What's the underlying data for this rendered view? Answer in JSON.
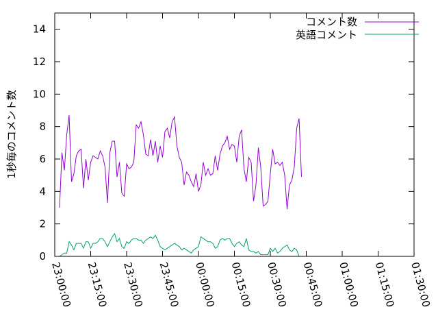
{
  "chart_data": {
    "type": "line",
    "title": "",
    "xlabel": "",
    "ylabel": "1秒毎のコメント数",
    "xlim": [
      "23:00:00",
      "01:30:00"
    ],
    "ylim": [
      0,
      15
    ],
    "x_ticks": [
      "23:00:00",
      "23:15:00",
      "23:30:00",
      "23:45:00",
      "00:00:00",
      "00:15:00",
      "00:30:00",
      "00:45:00",
      "01:00:00",
      "01:15:00",
      "01:30:00"
    ],
    "y_ticks": [
      "0",
      "2",
      "4",
      "6",
      "8",
      "10",
      "12",
      "14"
    ],
    "grid": false,
    "legend_position": "top-right",
    "x_start": "23:02:00",
    "x_step_seconds": 60,
    "series": [
      {
        "name": "コメント数",
        "color": "#9400d3",
        "values": [
          3.0,
          6.4,
          5.3,
          7.5,
          8.7,
          4.6,
          5.1,
          6.2,
          6.5,
          6.6,
          4.2,
          6.0,
          4.7,
          5.8,
          6.2,
          6.1,
          6.0,
          6.5,
          6.2,
          5.5,
          3.3,
          6.4,
          7.1,
          7.1,
          4.9,
          5.8,
          3.9,
          3.7,
          5.7,
          5.4,
          5.5,
          5.8,
          8.1,
          7.9,
          8.3,
          7.5,
          6.3,
          6.2,
          7.2,
          6.2,
          7.1,
          5.8,
          6.8,
          6.1,
          7.7,
          7.9,
          7.3,
          8.3,
          8.6,
          6.8,
          6.1,
          5.8,
          4.4,
          5.2,
          5.0,
          4.6,
          4.3,
          5.1,
          4.0,
          4.4,
          5.8,
          5.0,
          5.4,
          5.0,
          5.1,
          6.2,
          5.3,
          6.3,
          6.8,
          7.0,
          7.4,
          6.6,
          6.9,
          6.8,
          5.8,
          7.4,
          7.8,
          5.4,
          4.6,
          6.1,
          5.8,
          3.4,
          4.4,
          6.7,
          5.5,
          3.1,
          3.2,
          3.4,
          5.1,
          6.6,
          5.7,
          5.8,
          5.6,
          5.8,
          5.0,
          2.9,
          4.4,
          4.7,
          5.5,
          7.9,
          8.5,
          4.9
        ]
      },
      {
        "name": "英語コメント",
        "color": "#009e73",
        "values": [
          0.0,
          0.1,
          0.2,
          0.2,
          0.9,
          0.7,
          0.4,
          0.8,
          0.8,
          0.8,
          0.5,
          0.9,
          0.9,
          0.5,
          0.8,
          0.8,
          0.9,
          1.1,
          1.1,
          0.9,
          0.6,
          0.9,
          1.2,
          1.4,
          0.9,
          1.1,
          0.6,
          0.5,
          0.9,
          0.8,
          1.0,
          1.1,
          1.1,
          1.0,
          1.0,
          0.8,
          1.0,
          1.1,
          1.2,
          1.1,
          1.3,
          1.0,
          0.6,
          0.5,
          0.4,
          0.5,
          0.6,
          0.7,
          0.8,
          0.7,
          0.6,
          0.4,
          0.5,
          0.4,
          0.3,
          0.2,
          0.4,
          0.5,
          0.6,
          1.2,
          1.1,
          1.0,
          0.9,
          0.9,
          0.8,
          0.5,
          0.6,
          1.0,
          1.1,
          1.0,
          1.1,
          1.1,
          0.8,
          0.6,
          0.8,
          0.9,
          0.7,
          0.6,
          1.1,
          0.4,
          0.3,
          0.3,
          0.2,
          0.3,
          0.1,
          0.1,
          0.1,
          0.1,
          0.5,
          0.3,
          0.5,
          0.2,
          0.3,
          0.5,
          0.6,
          0.7,
          0.4,
          0.3,
          0.5,
          0.4,
          0.0
        ]
      }
    ]
  }
}
